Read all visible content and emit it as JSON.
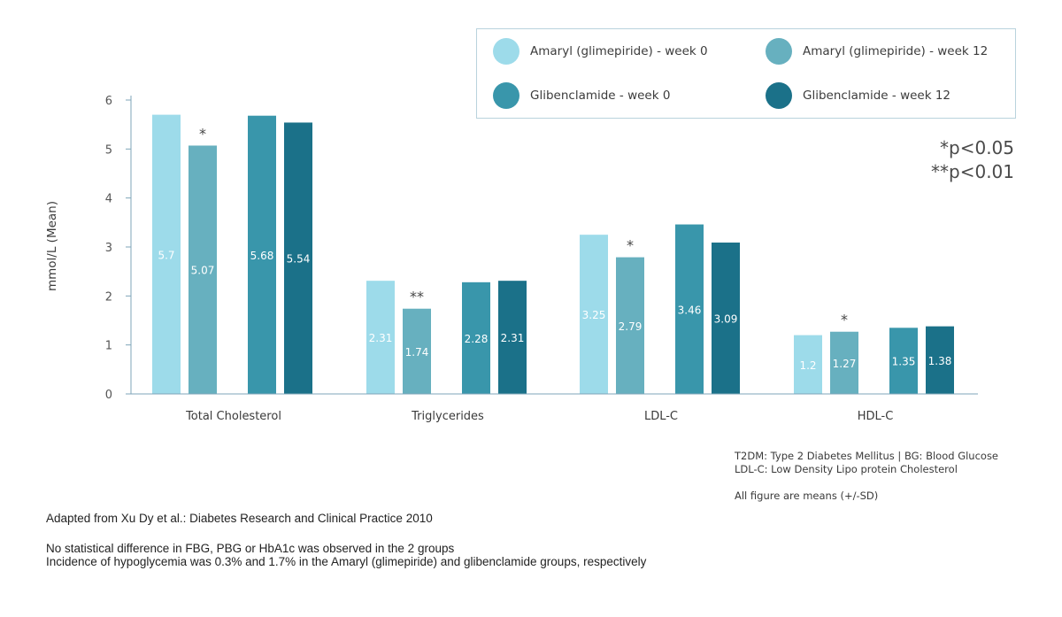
{
  "chart_data": {
    "type": "bar",
    "categories": [
      "Total Cholesterol",
      "Triglycerides",
      "LDL-C",
      "HDL-C"
    ],
    "series": [
      {
        "name": "Amaryl (glimepiride) - week 0",
        "values": [
          5.7,
          2.31,
          3.25,
          1.2
        ],
        "color": "#9ddbea"
      },
      {
        "name": "Amaryl (glimepiride) - week 12",
        "values": [
          5.07,
          1.74,
          2.79,
          1.27
        ],
        "color": "#67b0bf"
      },
      {
        "name": "Glibenclamide - week 0",
        "values": [
          5.68,
          2.28,
          3.46,
          1.35
        ],
        "color": "#3996ab"
      },
      {
        "name": "Glibenclamide - week 12",
        "values": [
          5.54,
          2.31,
          3.09,
          1.38
        ],
        "color": "#1b7189"
      }
    ],
    "data_labels": [
      [
        "5.7",
        "5.07",
        "5.68",
        "5.54"
      ],
      [
        "2.31",
        "1.74",
        "2.28",
        "2.31"
      ],
      [
        "3.25",
        "2.79",
        "3.46",
        "3.09"
      ],
      [
        "1.2",
        "1.27",
        "1.35",
        "1.38"
      ]
    ],
    "significance_markers": [
      {
        "category": "Total Cholesterol",
        "series": "Amaryl (glimepiride) - week 12",
        "mark": "*"
      },
      {
        "category": "Triglycerides",
        "series": "Amaryl (glimepiride) - week 12",
        "mark": "**"
      },
      {
        "category": "LDL-C",
        "series": "Amaryl (glimepiride) - week 12",
        "mark": "*"
      },
      {
        "category": "HDL-C",
        "series": "Amaryl (glimepiride) - week 12",
        "mark": "*"
      }
    ],
    "ylabel": "mmol/L (Mean)",
    "xlabel": "",
    "ylim": [
      0,
      6
    ],
    "yticks": [
      "0",
      "1",
      "2",
      "3",
      "4",
      "5",
      "6"
    ],
    "legend_position": "top-right",
    "grid": false
  },
  "legend": [
    {
      "label": "Amaryl (glimepiride) - week 0",
      "color": "#9ddbea"
    },
    {
      "label": "Amaryl (glimepiride) - week 12",
      "color": "#67b0bf"
    },
    {
      "label": "Glibenclamide - week 0",
      "color": "#3996ab"
    },
    {
      "label": "Glibenclamide - week 12",
      "color": "#1b7189"
    }
  ],
  "significance_notes": [
    "*p<0.05",
    "**p<0.01"
  ],
  "abbreviations": [
    "T2DM: Type 2 Diabetes Mellitus | BG: Blood Glucose",
    "LDL-C: Low Density Lipo protein Cholesterol"
  ],
  "means_note": "All figure are means (+/-SD)",
  "source": "Adapted from Xu Dy et al.: Diabetes Research and Clinical Practice 2010",
  "footnotes": [
    "No statistical difference in FBG, PBG or HbA1c was observed in the 2 groups",
    "Incidence of hypoglycemia was 0.3% and 1.7% in the Amaryl (glimepiride) and glibenclamide groups, respectively"
  ]
}
